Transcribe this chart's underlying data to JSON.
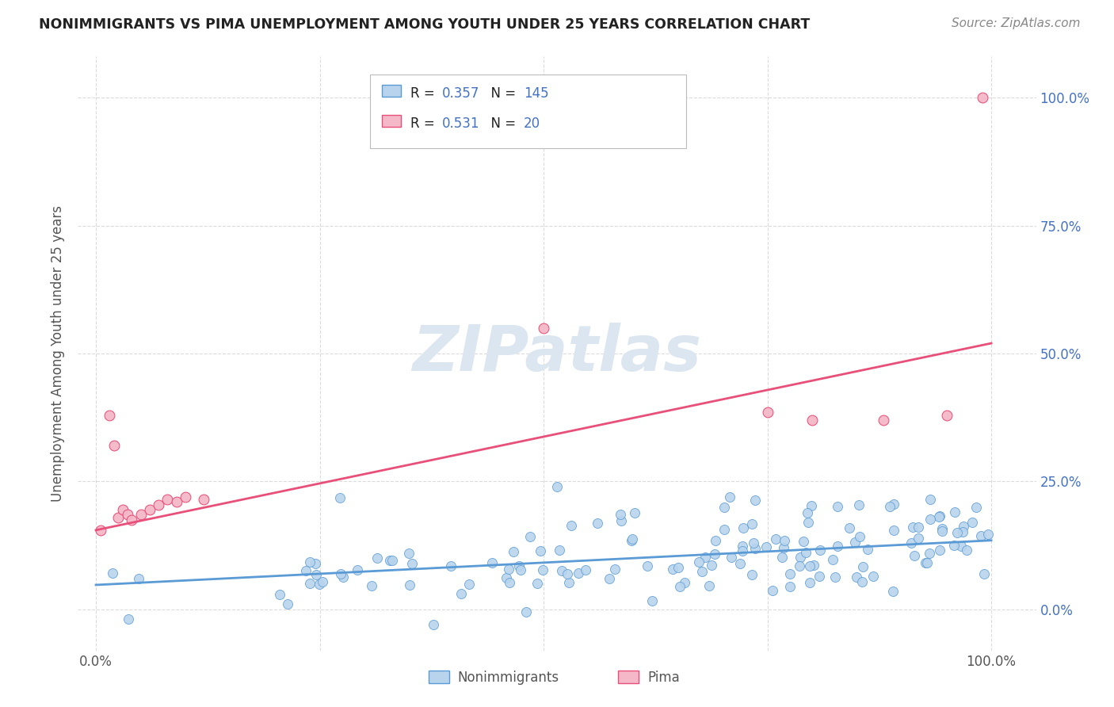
{
  "title": "NONIMMIGRANTS VS PIMA UNEMPLOYMENT AMONG YOUTH UNDER 25 YEARS CORRELATION CHART",
  "source": "Source: ZipAtlas.com",
  "ylabel": "Unemployment Among Youth under 25 years",
  "xlim": [
    -0.02,
    1.05
  ],
  "ylim": [
    -0.08,
    1.08
  ],
  "ytick_vals": [
    0.0,
    0.25,
    0.5,
    0.75,
    1.0
  ],
  "ytick_labels": [
    "0.0%",
    "25.0%",
    "50.0%",
    "75.0%",
    "100.0%"
  ],
  "xtick_vals": [
    0.0,
    0.25,
    0.5,
    0.75,
    1.0
  ],
  "xtick_labels": [
    "0.0%",
    "",
    "",
    "",
    "100.0%"
  ],
  "nonimmigrant_fill": "#b8d4ed",
  "nonimmigrant_edge": "#5b9bd5",
  "pima_fill": "#f4b8c8",
  "pima_edge": "#e8507a",
  "nonimmigrant_line_color": "#5b9bd5",
  "pima_line_color": "#e8507a",
  "title_color": "#222222",
  "source_color": "#888888",
  "label_color": "#4472c4",
  "R_nonimmigrant": "0.357",
  "N_nonimmigrant": "145",
  "R_pima": "0.531",
  "N_pima": "20",
  "text_black": "#222222",
  "text_blue": "#4472c4",
  "watermark_text": "ZIPatlas",
  "watermark_color": "#dce6f0",
  "background_color": "#ffffff",
  "grid_color": "#cccccc",
  "nonimmigrant_trend_y0": 0.048,
  "nonimmigrant_trend_y1": 0.135,
  "pima_trend_y0": 0.155,
  "pima_trend_y1": 0.52,
  "legend_label_1": "Nonimmigrants",
  "legend_label_2": "Pima"
}
